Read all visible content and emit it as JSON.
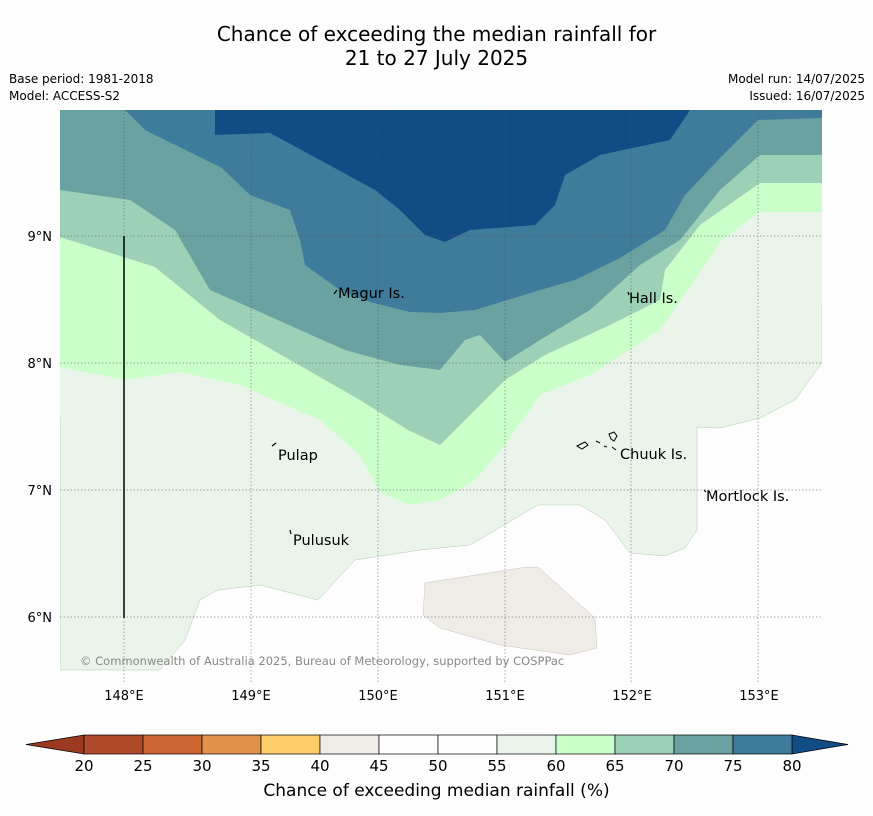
{
  "header": {
    "title_line1": "Chance of exceeding the median rainfall for",
    "title_line2": "21 to 27 July 2025",
    "base_period": "Base period: 1981-2018",
    "model": "Model: ACCESS-S2",
    "model_run": "Model run: 14/07/2025",
    "issued": "Issued: 16/07/2025"
  },
  "map": {
    "lat_ticks": [
      "9°N",
      "8°N",
      "7°N",
      "6°N"
    ],
    "lon_ticks": [
      "148°E",
      "149°E",
      "150°E",
      "151°E",
      "152°E",
      "153°E"
    ],
    "places": [
      "Magur Is.",
      "Hall Is.",
      "Pulap",
      "Chuuk Is.",
      "Mortlock Is.",
      "Pulusuk"
    ],
    "copyright": "© Commonwealth of Australia 2025, Bureau of Meteorology, supported by COSPPac"
  },
  "colorbar": {
    "ticks": [
      "20",
      "25",
      "30",
      "35",
      "40",
      "45",
      "50",
      "55",
      "60",
      "65",
      "70",
      "75",
      "80"
    ],
    "colors": [
      "#b0482a",
      "#cd6432",
      "#e0914a",
      "#fdcd6a",
      "#efebe6",
      "#fcfdfc",
      "#fcfdfc",
      "#eaf4ea",
      "#caffca",
      "#9cd1b8",
      "#6aa2a2",
      "#3f7b9a"
    ],
    "under_color": "#9b3a20",
    "over_color": "#124c85",
    "label": "Chance of exceeding median rainfall (%)"
  }
}
